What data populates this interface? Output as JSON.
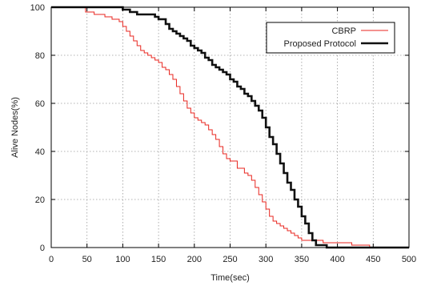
{
  "chart_data": {
    "type": "line",
    "title": "",
    "xlabel": "Time(sec)",
    "ylabel": "Alive Nodes(%)",
    "xlim": [
      0,
      500
    ],
    "ylim": [
      0,
      100
    ],
    "xticks": [
      0,
      50,
      100,
      150,
      200,
      250,
      300,
      350,
      400,
      450,
      500
    ],
    "yticks": [
      0,
      20,
      40,
      60,
      80,
      100
    ],
    "grid": true,
    "legend_position": "top-right",
    "series": [
      {
        "name": "CBRP",
        "color": "#e8261f",
        "style": "step",
        "x": [
          0,
          40,
          48,
          60,
          75,
          85,
          95,
          100,
          105,
          110,
          115,
          120,
          125,
          130,
          135,
          140,
          145,
          150,
          155,
          160,
          165,
          170,
          175,
          180,
          185,
          190,
          195,
          200,
          205,
          210,
          215,
          220,
          225,
          230,
          235,
          240,
          245,
          250,
          260,
          270,
          275,
          280,
          285,
          290,
          295,
          300,
          305,
          310,
          315,
          320,
          325,
          330,
          335,
          340,
          345,
          350,
          355,
          370,
          380,
          390,
          420,
          440,
          445,
          500
        ],
        "y": [
          100,
          100,
          98,
          97,
          96,
          95,
          94,
          92,
          90,
          88,
          86,
          84,
          82,
          81,
          80,
          79,
          78,
          77,
          75,
          74,
          72,
          70,
          67,
          64,
          61,
          58,
          56,
          54,
          53,
          52,
          51,
          49,
          47,
          45,
          42,
          39,
          37,
          36,
          33,
          31,
          30,
          28,
          25,
          22,
          19,
          16,
          13,
          11,
          10,
          9,
          8,
          7,
          6,
          5,
          4,
          3,
          3,
          3,
          2,
          2,
          1,
          1,
          0,
          0
        ]
      },
      {
        "name": "Proposed Protocol",
        "color": "#111111",
        "style": "step",
        "x": [
          0,
          100,
          110,
          120,
          145,
          150,
          160,
          165,
          170,
          175,
          180,
          185,
          190,
          195,
          200,
          205,
          210,
          215,
          220,
          225,
          230,
          235,
          240,
          245,
          250,
          255,
          260,
          265,
          270,
          275,
          280,
          285,
          290,
          295,
          300,
          305,
          310,
          315,
          320,
          325,
          330,
          335,
          340,
          345,
          350,
          355,
          360,
          365,
          370,
          375,
          380,
          385,
          400,
          420,
          500
        ],
        "y": [
          100,
          99,
          98,
          97,
          96,
          95,
          93,
          91,
          90,
          89,
          88,
          87,
          86,
          84,
          83,
          82,
          81,
          79,
          78,
          76,
          75,
          74,
          73,
          72,
          70,
          69,
          67,
          66,
          64,
          63,
          61,
          59,
          57,
          54,
          50,
          46,
          43,
          39,
          35,
          31,
          27,
          24,
          20,
          17,
          13,
          10,
          6,
          3,
          1,
          1,
          1,
          0,
          0,
          0,
          0
        ]
      }
    ]
  }
}
